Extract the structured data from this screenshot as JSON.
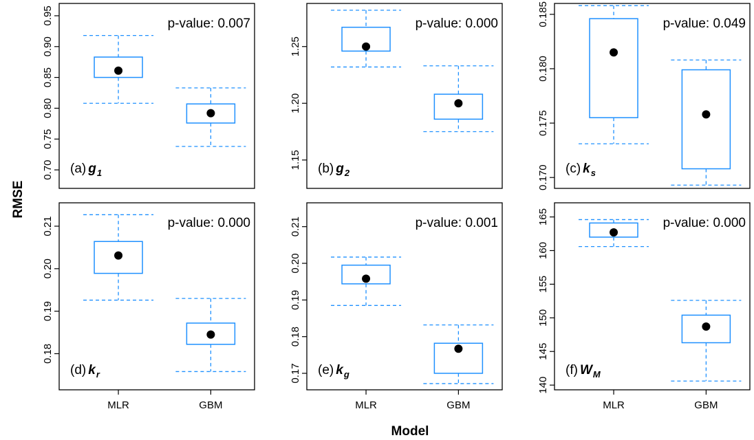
{
  "figure": {
    "ylabel": "RMSE",
    "xlabel": "Model",
    "box_color": "#1e90ff"
  },
  "chart_data": [
    {
      "type": "box",
      "panel": "(a)",
      "var": "g",
      "sub": "1",
      "pvalue_text": "p-value: 0.007",
      "categories": [
        "MLR",
        "GBM"
      ],
      "ylim": [
        0.67,
        0.97
      ],
      "yticks": [
        0.7,
        0.75,
        0.8,
        0.85,
        0.9,
        0.95
      ],
      "ytick_labels": [
        "0.70",
        "0.75",
        "0.80",
        "0.85",
        "0.90",
        "0.95"
      ],
      "boxes": [
        {
          "whisker_low": 0.808,
          "q1": 0.85,
          "q3": 0.883,
          "whisker_high": 0.918,
          "mean": 0.861
        },
        {
          "whisker_low": 0.738,
          "q1": 0.776,
          "q3": 0.807,
          "whisker_high": 0.833,
          "mean": 0.792
        }
      ]
    },
    {
      "type": "box",
      "panel": "(b)",
      "var": "g",
      "sub": "2",
      "pvalue_text": "p-value: 0.000",
      "categories": [
        "MLR",
        "GBM"
      ],
      "ylim": [
        1.125,
        1.288
      ],
      "yticks": [
        1.15,
        1.2,
        1.25
      ],
      "ytick_labels": [
        "1.15",
        "1.20",
        "1.25"
      ],
      "boxes": [
        {
          "whisker_low": 1.232,
          "q1": 1.246,
          "q3": 1.267,
          "whisker_high": 1.282,
          "mean": 1.25
        },
        {
          "whisker_low": 1.175,
          "q1": 1.186,
          "q3": 1.208,
          "whisker_high": 1.233,
          "mean": 1.2
        }
      ]
    },
    {
      "type": "box",
      "panel": "(c)",
      "var": "k",
      "sub": "s",
      "pvalue_text": "p-value: 0.049",
      "categories": [
        "MLR",
        "GBM"
      ],
      "ylim": [
        0.169,
        0.186
      ],
      "yticks": [
        0.17,
        0.175,
        0.18,
        0.185
      ],
      "ytick_labels": [
        "0.170",
        "0.175",
        "0.180",
        "0.185"
      ],
      "boxes": [
        {
          "whisker_low": 0.1731,
          "q1": 0.1755,
          "q3": 0.1846,
          "whisker_high": 0.1858,
          "mean": 0.1815
        },
        {
          "whisker_low": 0.1693,
          "q1": 0.1708,
          "q3": 0.1799,
          "whisker_high": 0.1808,
          "mean": 0.1758
        }
      ]
    },
    {
      "type": "box",
      "panel": "(d)",
      "var": "k",
      "sub": "r",
      "pvalue_text": "p-value: 0.000",
      "categories": [
        "MLR",
        "GBM"
      ],
      "ylim": [
        0.1715,
        0.2155
      ],
      "yticks": [
        0.18,
        0.19,
        0.2,
        0.21
      ],
      "ytick_labels": [
        "0.18",
        "0.19",
        "0.20",
        "0.21"
      ],
      "boxes": [
        {
          "whisker_low": 0.1926,
          "q1": 0.1989,
          "q3": 0.2064,
          "whisker_high": 0.2127,
          "mean": 0.2031
        },
        {
          "whisker_low": 0.1758,
          "q1": 0.1822,
          "q3": 0.1872,
          "whisker_high": 0.193,
          "mean": 0.1845
        }
      ]
    },
    {
      "type": "box",
      "panel": "(e)",
      "var": "k",
      "sub": "g",
      "pvalue_text": "p-value: 0.001",
      "categories": [
        "MLR",
        "GBM"
      ],
      "ylim": [
        0.1655,
        0.2165
      ],
      "yticks": [
        0.17,
        0.18,
        0.19,
        0.2,
        0.21
      ],
      "ytick_labels": [
        "0.17",
        "0.18",
        "0.19",
        "0.20",
        "0.21"
      ],
      "boxes": [
        {
          "whisker_low": 0.1885,
          "q1": 0.1944,
          "q3": 0.1995,
          "whisker_high": 0.2017,
          "mean": 0.1958
        },
        {
          "whisker_low": 0.1672,
          "q1": 0.17,
          "q3": 0.1782,
          "whisker_high": 0.1832,
          "mean": 0.1767
        }
      ]
    },
    {
      "type": "box",
      "panel": "(f)",
      "var": "W",
      "sub": "M",
      "pvalue_text": "p-value: 0.000",
      "categories": [
        "MLR",
        "GBM"
      ],
      "ylim": [
        139.3,
        167.1
      ],
      "yticks": [
        140,
        145,
        150,
        155,
        160,
        165
      ],
      "ytick_labels": [
        "140",
        "145",
        "150",
        "155",
        "160",
        "165"
      ],
      "boxes": [
        {
          "whisker_low": 160.6,
          "q1": 162.0,
          "q3": 164.1,
          "whisker_high": 164.6,
          "mean": 162.7
        },
        {
          "whisker_low": 140.6,
          "q1": 146.3,
          "q3": 150.4,
          "whisker_high": 152.6,
          "mean": 148.7
        }
      ]
    }
  ]
}
